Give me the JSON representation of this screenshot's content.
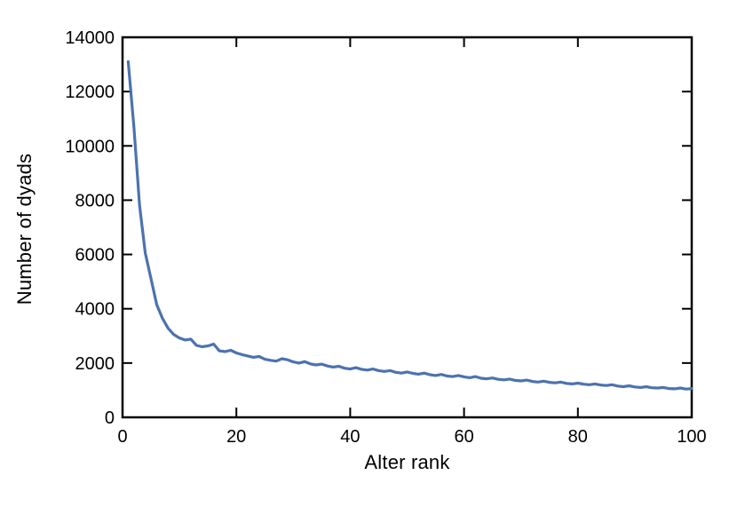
{
  "figure": {
    "background": "#ffffff",
    "axis_color": "#000000"
  },
  "chart_data": {
    "type": "line",
    "xlabel": "Alter rank",
    "ylabel": "Number of dyads",
    "xlim": [
      0,
      100
    ],
    "ylim": [
      0,
      14000
    ],
    "xticks": [
      0,
      20,
      40,
      60,
      80,
      100
    ],
    "yticks": [
      0,
      2000,
      4000,
      6000,
      8000,
      10000,
      12000,
      14000
    ],
    "grid": false,
    "legend": "none",
    "line_color": "#4C72B0",
    "line_width": 3.2,
    "frame": "full-box with inward mirrored ticks",
    "x": [
      1,
      2,
      3,
      4,
      5,
      6,
      7,
      8,
      9,
      10,
      11,
      12,
      13,
      14,
      15,
      16,
      17,
      18,
      19,
      20,
      21,
      22,
      23,
      24,
      25,
      26,
      27,
      28,
      29,
      30,
      31,
      32,
      33,
      34,
      35,
      36,
      37,
      38,
      39,
      40,
      41,
      42,
      43,
      44,
      45,
      46,
      47,
      48,
      49,
      50,
      51,
      52,
      53,
      54,
      55,
      56,
      57,
      58,
      59,
      60,
      61,
      62,
      63,
      64,
      65,
      66,
      67,
      68,
      69,
      70,
      71,
      72,
      73,
      74,
      75,
      76,
      77,
      78,
      79,
      80,
      81,
      82,
      83,
      84,
      85,
      86,
      87,
      88,
      89,
      90,
      91,
      92,
      93,
      94,
      95,
      96,
      97,
      98,
      99,
      100
    ],
    "series": [
      {
        "name": "Number of dyads",
        "values": [
          13100,
          10700,
          7800,
          6050,
          5100,
          4150,
          3650,
          3280,
          3050,
          2920,
          2850,
          2880,
          2650,
          2600,
          2630,
          2700,
          2450,
          2420,
          2470,
          2370,
          2310,
          2260,
          2210,
          2240,
          2140,
          2100,
          2070,
          2160,
          2120,
          2040,
          2000,
          2050,
          1970,
          1930,
          1960,
          1890,
          1850,
          1880,
          1810,
          1780,
          1830,
          1770,
          1740,
          1780,
          1720,
          1690,
          1720,
          1660,
          1630,
          1670,
          1620,
          1590,
          1630,
          1570,
          1540,
          1580,
          1520,
          1500,
          1540,
          1490,
          1460,
          1500,
          1440,
          1420,
          1450,
          1400,
          1380,
          1410,
          1360,
          1340,
          1370,
          1320,
          1300,
          1330,
          1290,
          1270,
          1300,
          1250,
          1230,
          1260,
          1220,
          1200,
          1230,
          1190,
          1170,
          1200,
          1150,
          1130,
          1160,
          1120,
          1100,
          1130,
          1090,
          1080,
          1100,
          1060,
          1050,
          1080,
          1040,
          1060
        ]
      }
    ]
  }
}
